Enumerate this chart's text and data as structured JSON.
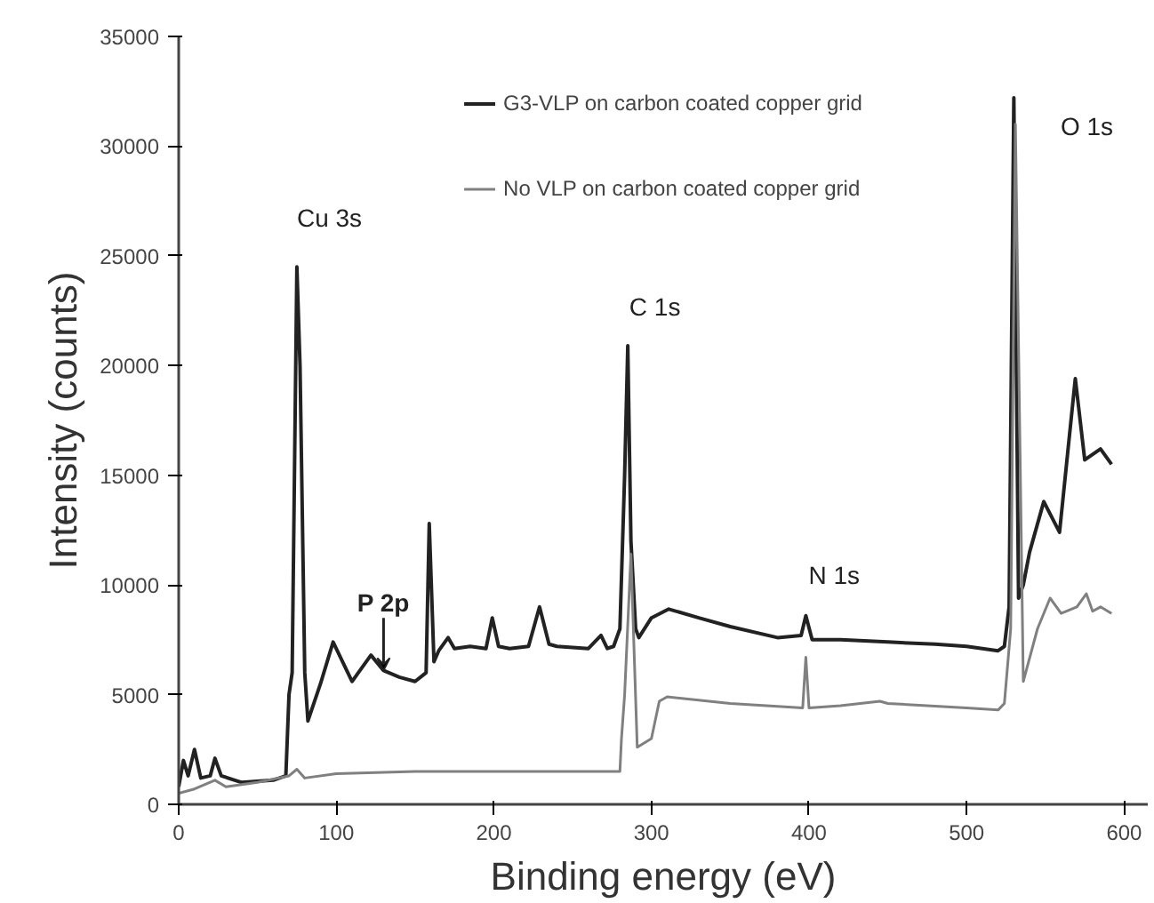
{
  "chart_data": {
    "type": "line",
    "xlabel": "Binding energy (eV)",
    "ylabel": "Intensity (counts)",
    "xlim": [
      0,
      615
    ],
    "ylim": [
      0,
      35000
    ],
    "xticks": [
      0,
      100,
      200,
      300,
      400,
      500,
      600
    ],
    "yticks": [
      0,
      5000,
      10000,
      15000,
      20000,
      25000,
      30000,
      35000
    ],
    "grid": false,
    "legend": "top",
    "line_style": "solid",
    "marker": "none",
    "series": [
      {
        "name": "G3-VLP on carbon coated copper grid",
        "color": "#222222",
        "x": [
          0,
          3,
          6,
          10,
          14,
          20,
          23,
          27,
          40,
          60,
          68,
          70,
          72,
          75,
          77,
          80,
          82,
          90,
          98,
          110,
          122,
          130,
          140,
          150,
          157,
          159,
          162,
          165,
          171,
          175,
          185,
          195,
          199,
          203,
          210,
          222,
          229,
          235,
          240,
          260,
          268,
          272,
          276,
          280,
          283,
          285,
          287,
          290,
          292,
          300,
          311,
          330,
          350,
          380,
          395,
          398,
          402,
          420,
          450,
          480,
          500,
          520,
          524,
          527,
          530,
          533,
          536,
          540,
          549,
          559,
          569,
          575,
          585,
          592
        ],
        "values": [
          800,
          2000,
          1300,
          2500,
          1200,
          1300,
          2100,
          1300,
          1000,
          1100,
          1300,
          5000,
          6000,
          24500,
          20000,
          6000,
          3800,
          5500,
          7400,
          5600,
          6800,
          6100,
          5800,
          5600,
          6000,
          12800,
          6500,
          7000,
          7600,
          7100,
          7200,
          7100,
          8500,
          7200,
          7100,
          7200,
          9000,
          7300,
          7200,
          7100,
          7700,
          7100,
          7200,
          8000,
          15000,
          20900,
          12000,
          8000,
          7600,
          8500,
          8900,
          8500,
          8100,
          7600,
          7700,
          8600,
          7500,
          7500,
          7400,
          7300,
          7200,
          7000,
          7200,
          9000,
          32200,
          9400,
          10000,
          11500,
          13800,
          12400,
          19400,
          15700,
          16200,
          15500
        ]
      },
      {
        "name": "No VLP on carbon coated copper grid",
        "color": "#808080",
        "x": [
          0,
          10,
          23,
          30,
          50,
          70,
          75,
          80,
          100,
          150,
          200,
          270,
          280,
          281,
          283,
          287,
          291,
          300,
          305,
          310,
          350,
          396,
          398,
          400,
          420,
          445,
          450,
          500,
          520,
          524,
          528,
          531,
          536,
          545,
          553,
          560,
          570,
          576,
          580,
          585,
          592
        ],
        "values": [
          500,
          700,
          1100,
          800,
          1000,
          1300,
          1600,
          1200,
          1400,
          1500,
          1500,
          1500,
          1500,
          3000,
          5000,
          11400,
          2600,
          3000,
          4700,
          4900,
          4600,
          4400,
          6700,
          4400,
          4500,
          4700,
          4600,
          4400,
          4300,
          4600,
          8000,
          31000,
          5600,
          8000,
          9400,
          8700,
          9000,
          9600,
          8800,
          9000,
          8700
        ]
      }
    ],
    "annotations": [
      "Cu 3s",
      "C 1s",
      "N 1s",
      "O 1s",
      {
        "text": "P 2p",
        "x": 130,
        "y": 6100
      }
    ]
  }
}
